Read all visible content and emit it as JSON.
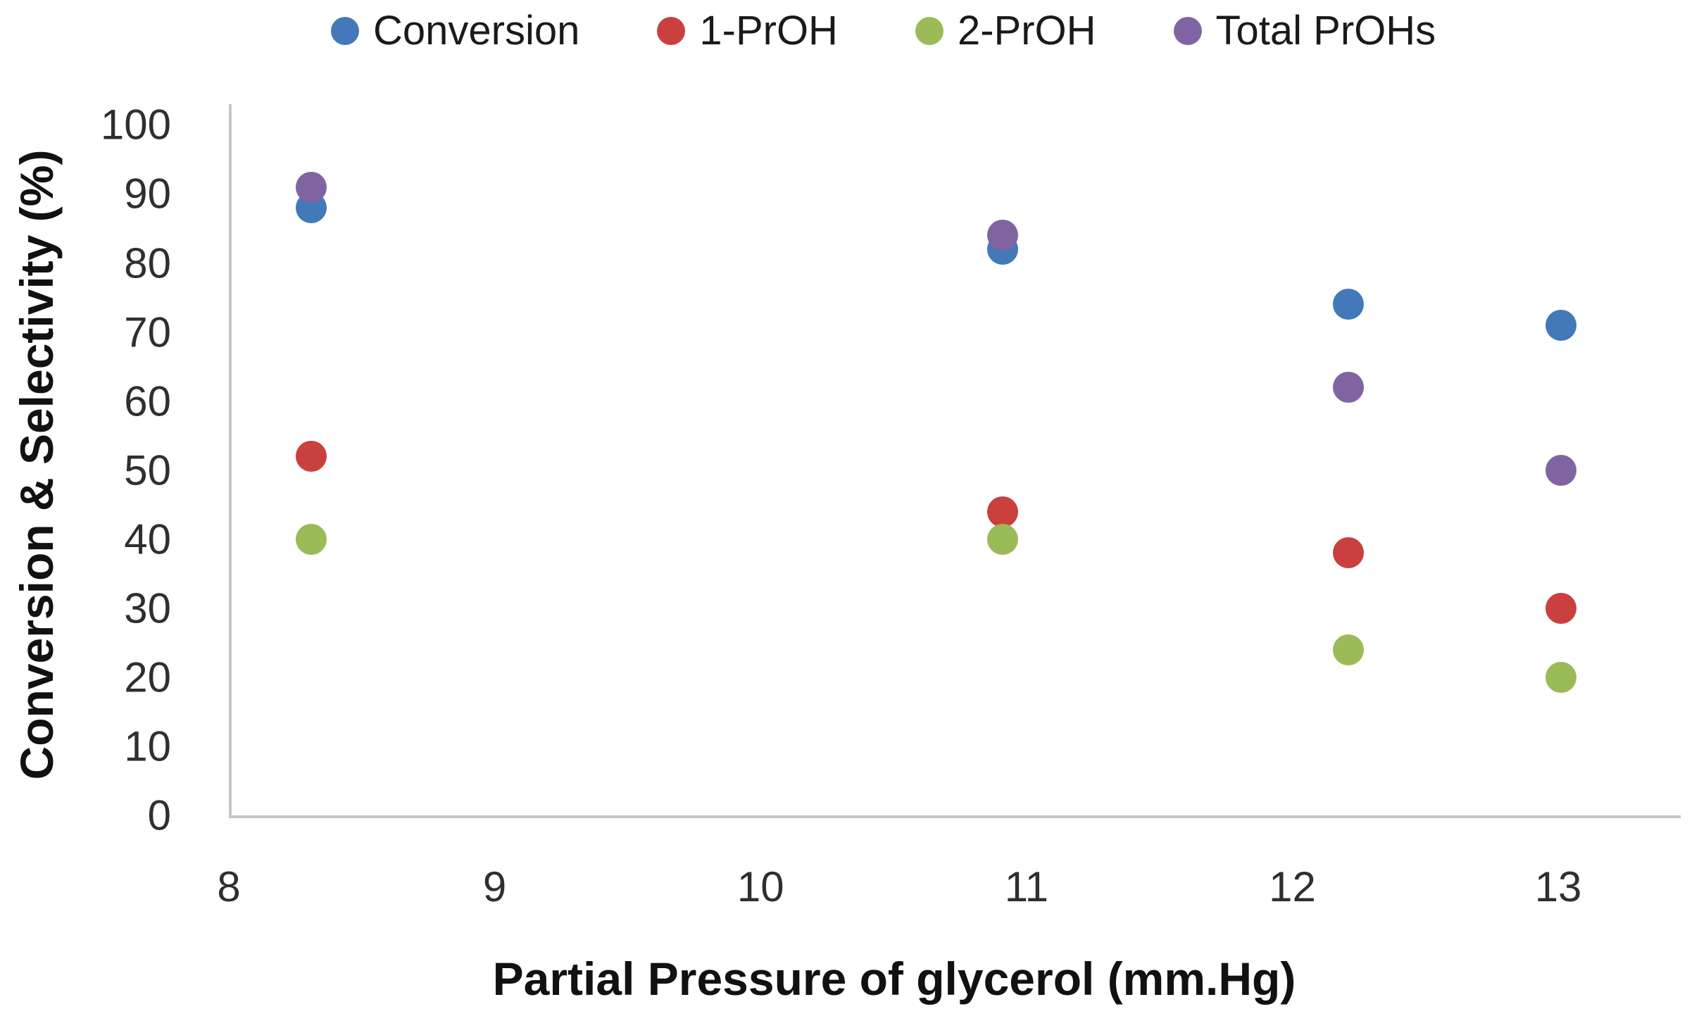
{
  "chart_data": {
    "type": "scatter",
    "title": "",
    "xlabel": "Partial Pressure of glycerol (mm.Hg)",
    "ylabel": "Conversion & Selectivity (%)",
    "x": [
      8.3,
      10.9,
      12.2,
      13
    ],
    "series": [
      {
        "name": "Conversion",
        "color": "#4379b8",
        "values": [
          88,
          82,
          74,
          71
        ]
      },
      {
        "name": "1-PrOH",
        "color": "#c9403e",
        "values": [
          52,
          44,
          38,
          30
        ]
      },
      {
        "name": "2-PrOH",
        "color": "#9bbb59",
        "values": [
          40,
          40,
          24,
          20
        ]
      },
      {
        "name": "Total PrOHs",
        "color": "#8064a2",
        "values": [
          91,
          84,
          62,
          50
        ]
      }
    ],
    "x_ticks": [
      8,
      9,
      10,
      11,
      12,
      13
    ],
    "y_ticks": [
      0,
      10,
      20,
      30,
      40,
      50,
      60,
      70,
      80,
      90,
      100
    ],
    "xlim": [
      8,
      13.45
    ],
    "ylim": [
      0,
      103
    ],
    "grid": false,
    "legend_position": "top",
    "axis_line_color": "#c6c6c6"
  }
}
